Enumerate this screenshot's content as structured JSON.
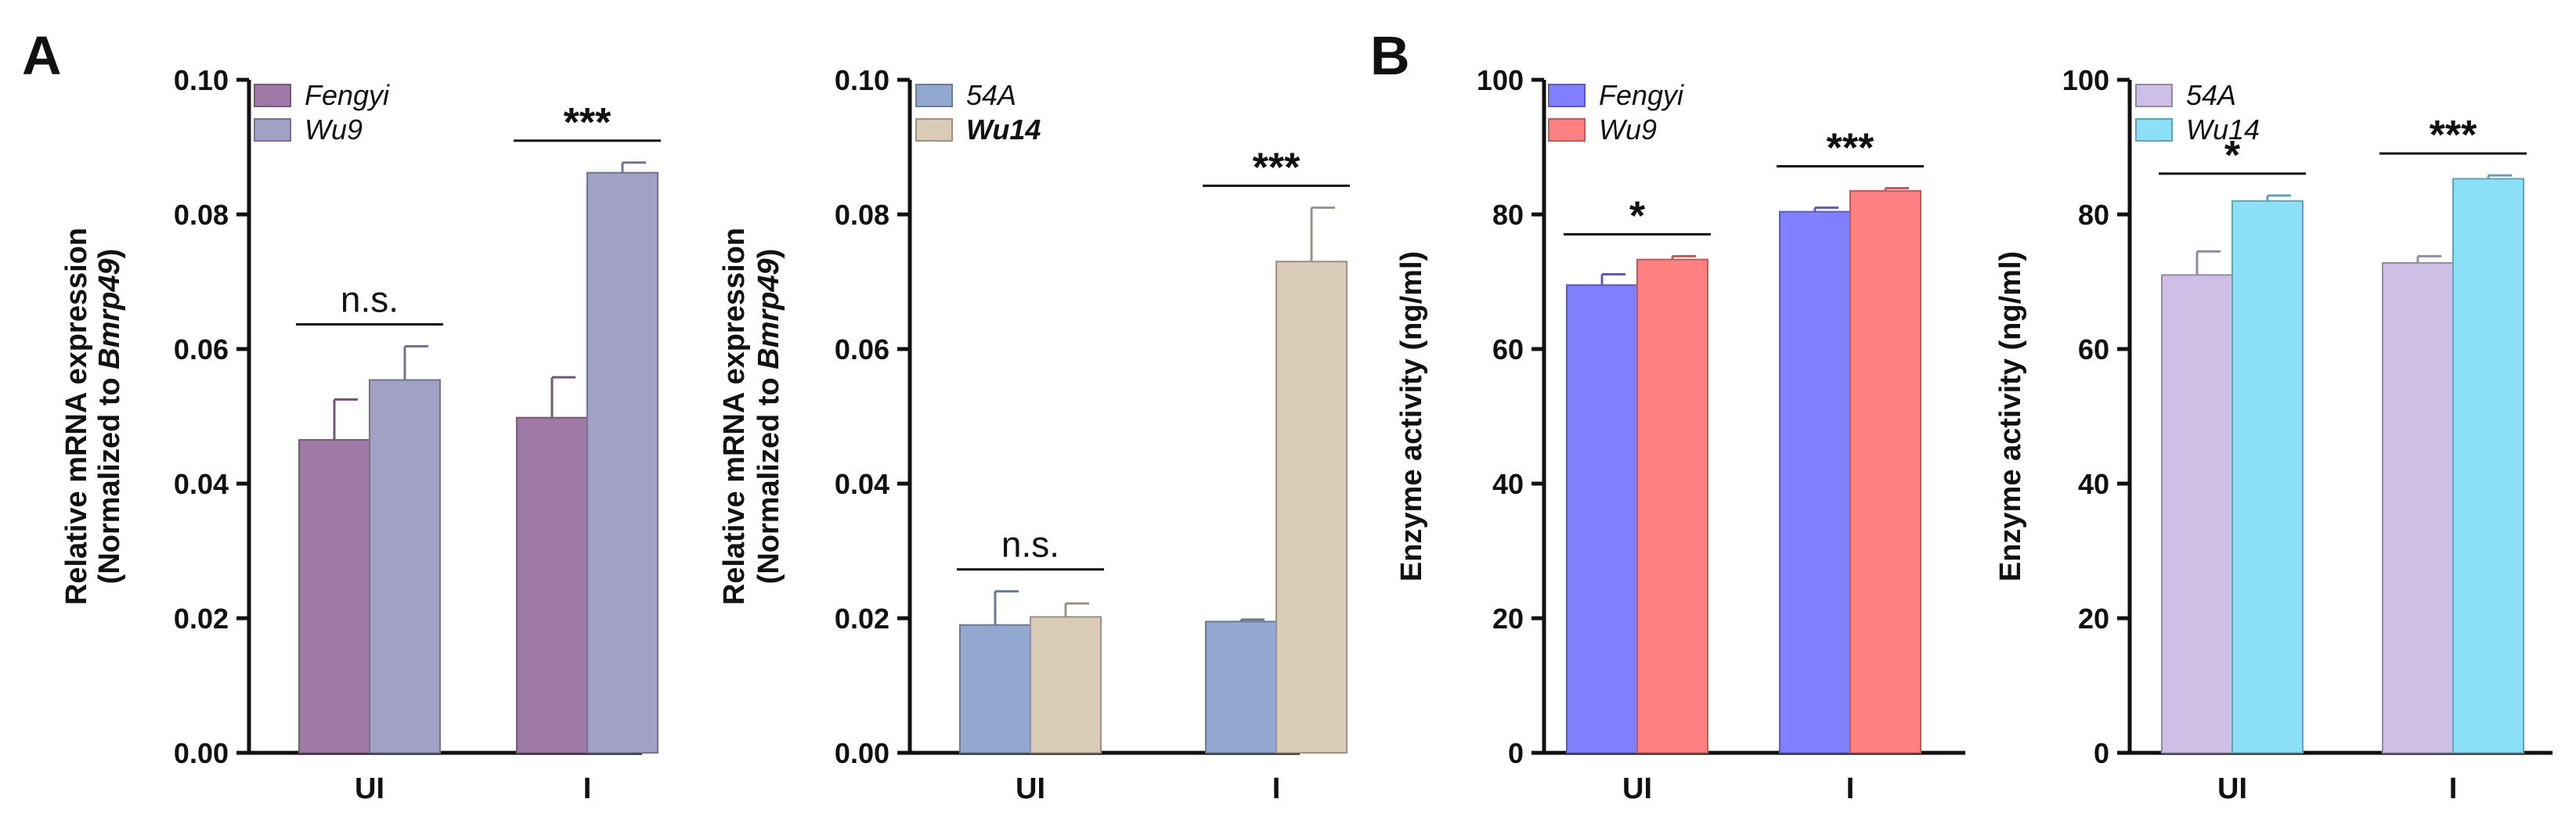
{
  "panels": [
    {
      "letter": "A"
    },
    {
      "letter": "B"
    }
  ],
  "chart_data": [
    {
      "type": "bar",
      "ylabel_line1": "Relative mRNA expression",
      "ylabel_line2_prefix": "(Normalized to ",
      "ylabel_line2_gene": "Bmrp49",
      "ylabel_line2_suffix": ")",
      "ylim": [
        0,
        0.1
      ],
      "yticks": [
        "0.00",
        "0.02",
        "0.04",
        "0.06",
        "0.08",
        "0.10"
      ],
      "categories": [
        "UI",
        "I"
      ],
      "series": [
        {
          "name": "Fengyi",
          "values": [
            0.0465,
            0.0498
          ],
          "errors": [
            0.006,
            0.006
          ],
          "color": "#a07aa6"
        },
        {
          "name": "Wu9",
          "values": [
            0.0554,
            0.0862
          ],
          "errors": [
            0.005,
            0.0015
          ],
          "color": "#a1a1c6"
        }
      ],
      "significance": [
        "n.s.",
        "***"
      ]
    },
    {
      "type": "bar",
      "ylabel_line1": "Relative mRNA expression",
      "ylabel_line2_prefix": "(Normalized to ",
      "ylabel_line2_gene": "Bmrp49",
      "ylabel_line2_suffix": ")",
      "ylim": [
        0,
        0.1
      ],
      "yticks": [
        "0.00",
        "0.02",
        "0.04",
        "0.06",
        "0.08",
        "0.10"
      ],
      "categories": [
        "UI",
        "I"
      ],
      "series": [
        {
          "name": "54A",
          "values": [
            0.019,
            0.0195
          ],
          "errors": [
            0.005,
            0.0003
          ],
          "color": "#93a8cf"
        },
        {
          "name": "Wu14",
          "values": [
            0.0202,
            0.073
          ],
          "errors": [
            0.002,
            0.008
          ],
          "color": "#d9cbb6",
          "bold": true
        }
      ],
      "significance": [
        "n.s.",
        "***"
      ]
    },
    {
      "type": "bar",
      "ylabel": "Enzyme activity (ng/ml)",
      "ylim": [
        0,
        100
      ],
      "yticks": [
        "0",
        "20",
        "40",
        "60",
        "80",
        "100"
      ],
      "categories": [
        "UI",
        "I"
      ],
      "series": [
        {
          "name": "Fengyi",
          "values": [
            69.5,
            80.4
          ],
          "errors": [
            1.6,
            0.6
          ],
          "color": "#8080ff"
        },
        {
          "name": "Wu9",
          "values": [
            73.3,
            83.5
          ],
          "errors": [
            0.5,
            0.4
          ],
          "color": "#ff8080"
        }
      ],
      "significance": [
        "*",
        "***"
      ]
    },
    {
      "type": "bar",
      "ylabel": "Enzyme activity (ng/ml)",
      "ylim": [
        0,
        100
      ],
      "yticks": [
        "0",
        "20",
        "40",
        "60",
        "80",
        "100"
      ],
      "categories": [
        "UI",
        "I"
      ],
      "series": [
        {
          "name": "54A",
          "values": [
            71.0,
            72.8
          ],
          "errors": [
            3.5,
            1.0
          ],
          "color": "#cdbfe6"
        },
        {
          "name": "Wu14",
          "values": [
            82.0,
            85.3
          ],
          "errors": [
            0.8,
            0.5
          ],
          "color": "#8be0f8"
        }
      ],
      "significance": [
        "*",
        "***"
      ]
    }
  ]
}
